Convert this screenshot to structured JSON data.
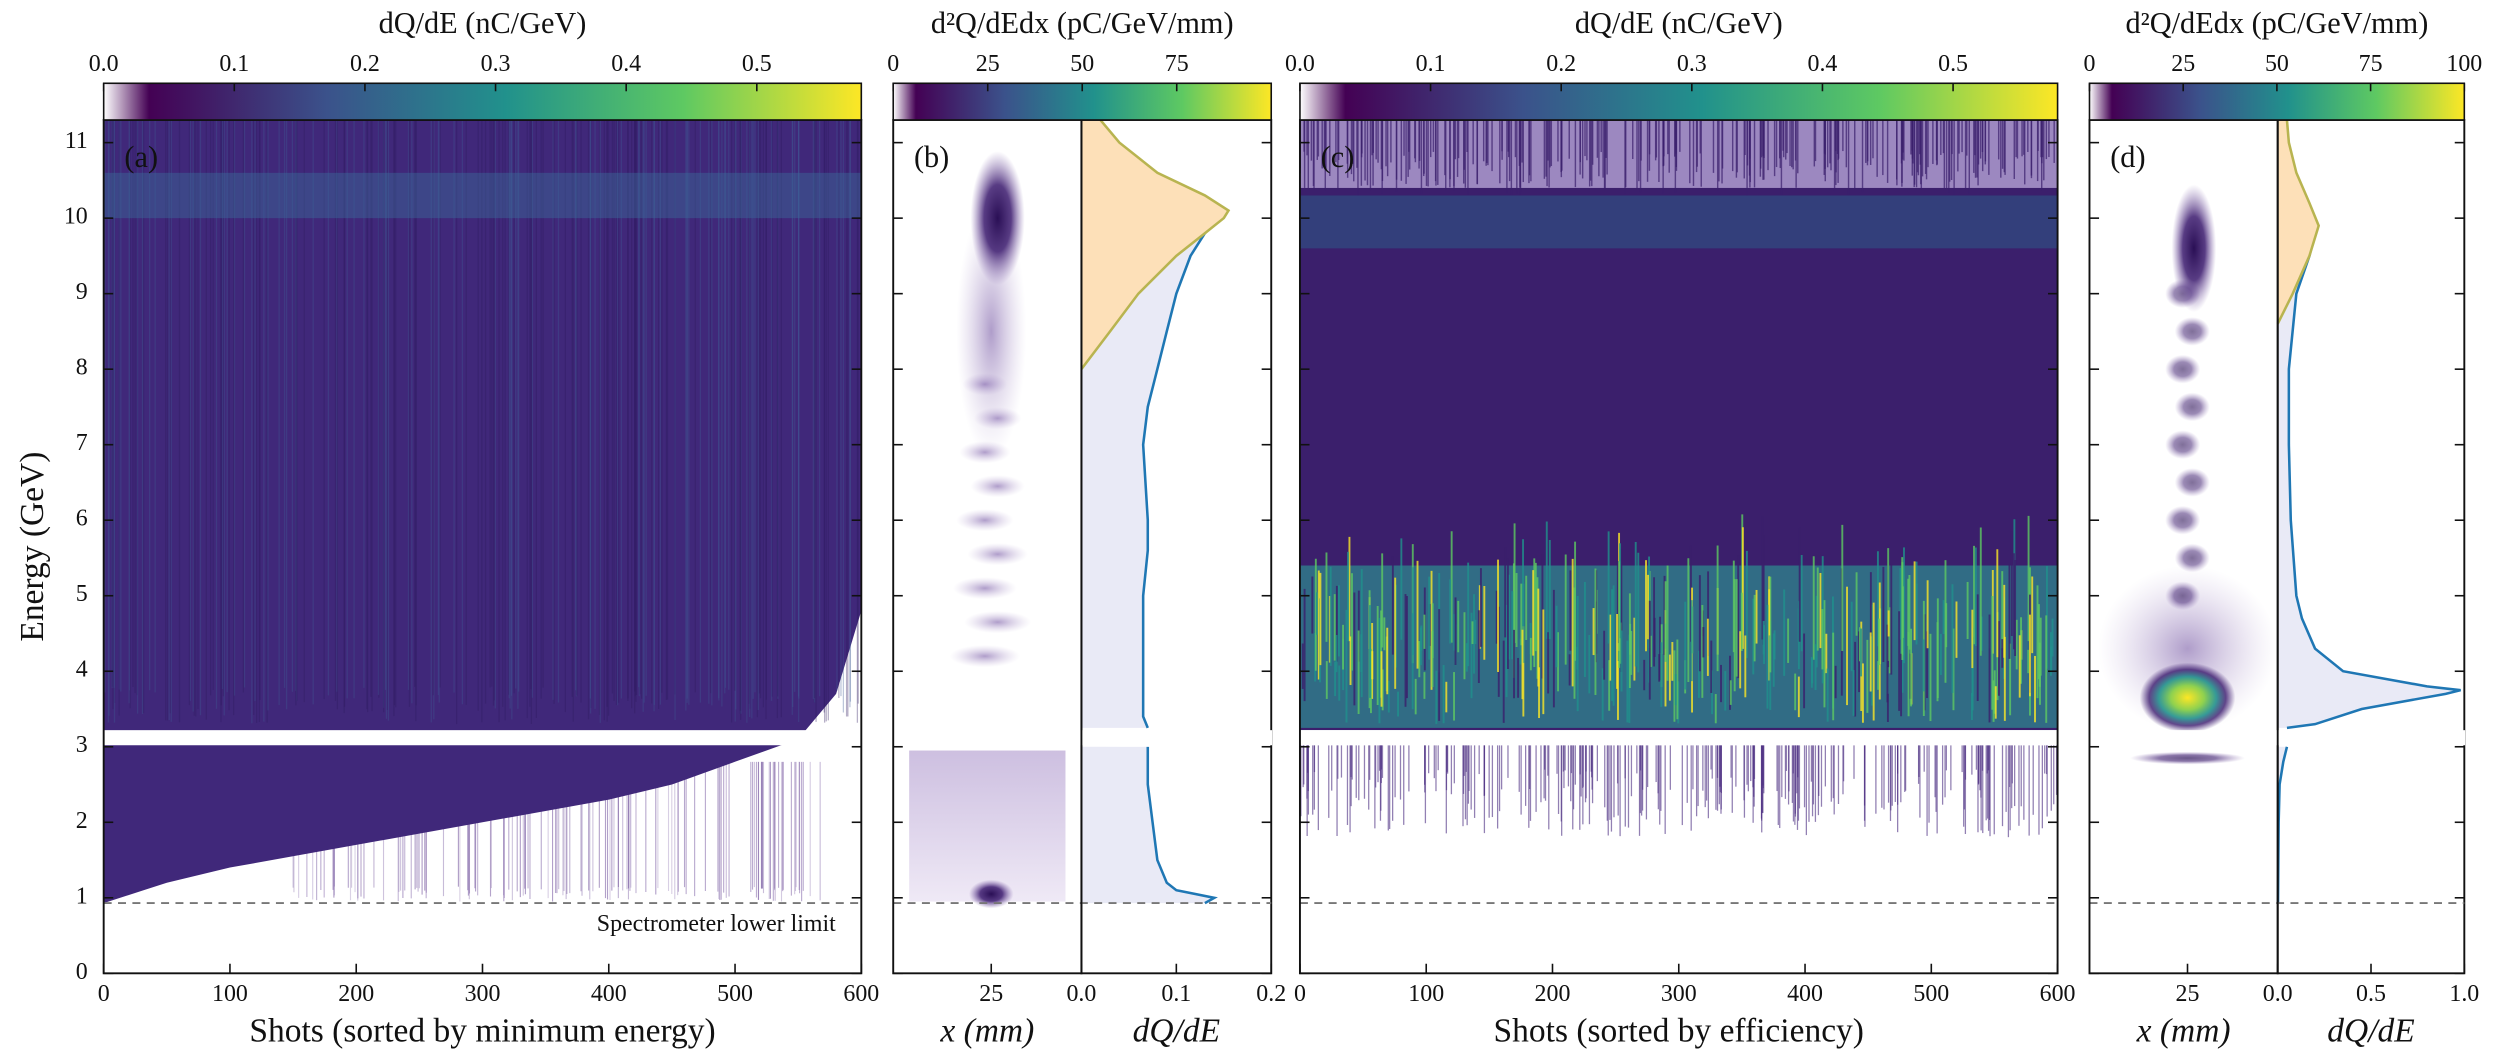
{
  "chart_data": [
    {
      "type": "heatmap",
      "panel_label": "(a)",
      "xlabel": "Shots (sorted by minimum energy)",
      "ylabel": "Energy (GeV)",
      "xlim": [
        0,
        600
      ],
      "xticks": [
        0,
        100,
        200,
        300,
        400,
        500,
        600
      ],
      "ylim": [
        0,
        11.3
      ],
      "yticks": [
        0,
        1,
        2,
        3,
        4,
        5,
        6,
        7,
        8,
        9,
        10,
        11
      ],
      "gap": [
        3.02,
        3.22
      ],
      "lower_limit": 0.93,
      "annotation": "Spectrometer lower limit",
      "min_energy": {
        "x": [
          0,
          50,
          100,
          200,
          300,
          400,
          450,
          500,
          550,
          580,
          600
        ],
        "values": [
          0.93,
          1.2,
          1.4,
          1.7,
          2.0,
          2.3,
          2.5,
          2.8,
          3.1,
          3.7,
          4.8
        ]
      },
      "colormap": [
        "#ffffff",
        "#440154",
        "#3b528b",
        "#21918c",
        "#5ec962",
        "#fde725"
      ],
      "colorbar": {
        "title": "dQ/dE (nC/GeV)",
        "lim": [
          0,
          0.58
        ],
        "ticks": [
          {
            "value": 0,
            "label": "0.0"
          },
          0.1,
          0.2,
          0.3,
          0.4,
          0.5
        ]
      }
    },
    {
      "type": "image-lineout",
      "panel_label": "(b)",
      "xlabel": "x (mm)",
      "xlim": [
        0,
        48
      ],
      "xticks": [
        25
      ],
      "colorbar": {
        "title": "d²Q/dEdx (pC/GeV/mm)",
        "lim": [
          0,
          100
        ],
        "ticks": [
          0,
          25,
          50,
          75
        ]
      },
      "lineout": {
        "xlabel": "dQ/dE",
        "xlim": [
          0,
          0.2
        ],
        "xticks": [
          {
            "value": 0,
            "label": "0.0"
          },
          0.1,
          0.2
        ],
        "color": "#1f77b4",
        "fill": "#e9eaf6",
        "energy": [
          0.93,
          1.0,
          1.05,
          1.1,
          1.2,
          1.5,
          2.0,
          2.5,
          3.0,
          3.1,
          3.25,
          3.4,
          4.0,
          5.0,
          5.6,
          6.0,
          7.0,
          7.5,
          8.0,
          8.5,
          9.0,
          9.5,
          9.8,
          10.0,
          10.1
        ],
        "values": [
          0.13,
          0.14,
          0.12,
          0.1,
          0.09,
          0.08,
          0.075,
          0.07,
          0.07,
          null,
          0.07,
          0.065,
          0.065,
          0.065,
          0.07,
          0.07,
          0.065,
          0.07,
          0.08,
          0.09,
          0.1,
          0.115,
          0.13,
          0.145,
          0.15
        ],
        "fit": {
          "color": "#b8b450",
          "fill": "#fde0b8",
          "energy": [
            8.0,
            8.5,
            9.0,
            9.5,
            9.8,
            10.0,
            10.1,
            10.3,
            10.6,
            11.0,
            11.3
          ],
          "values": [
            0,
            0.03,
            0.06,
            0.1,
            0.13,
            0.15,
            0.155,
            0.13,
            0.08,
            0.04,
            0.02
          ]
        }
      }
    },
    {
      "type": "heatmap",
      "panel_label": "(c)",
      "xlabel": "Shots (sorted by efficiency)",
      "xlim": [
        0,
        600
      ],
      "xticks": [
        0,
        100,
        200,
        300,
        400,
        500,
        600
      ],
      "colorbar": {
        "title": "dQ/dE (nC/GeV)",
        "lim": [
          0,
          0.58
        ],
        "ticks": [
          {
            "value": 0,
            "label": "0.0"
          },
          0.1,
          0.2,
          0.3,
          0.4,
          0.5
        ]
      }
    },
    {
      "type": "image-lineout",
      "panel_label": "(d)",
      "xlabel": "x (mm)",
      "xlim": [
        0,
        48
      ],
      "xticks": [
        25
      ],
      "colorbar": {
        "title": "d²Q/dEdx (pC/GeV/mm)",
        "lim": [
          0,
          100
        ],
        "ticks": [
          0,
          25,
          50,
          75,
          100
        ]
      },
      "lineout": {
        "xlabel": "dQ/dE",
        "xlim": [
          0,
          1.0
        ],
        "xticks": [
          {
            "value": 0,
            "label": "0.0"
          },
          0.5,
          {
            "value": 1,
            "label": "1.0"
          }
        ],
        "color": "#1f77b4",
        "fill": "#e9eaf6",
        "energy": [
          0.93,
          1.5,
          2.0,
          2.5,
          2.8,
          3.0,
          3.1,
          3.25,
          3.3,
          3.5,
          3.7,
          3.75,
          3.8,
          4.0,
          4.3,
          4.7,
          5.0,
          6.0,
          7.0,
          8.0,
          9.0,
          9.5,
          9.8
        ],
        "values": [
          0.002,
          0.003,
          0.005,
          0.01,
          0.03,
          0.05,
          null,
          0.05,
          0.2,
          0.45,
          0.9,
          0.98,
          0.8,
          0.35,
          0.2,
          0.13,
          0.1,
          0.07,
          0.06,
          0.06,
          0.1,
          0.17,
          0.2
        ],
        "fit": {
          "color": "#b8b450",
          "fill": "#fde0b8",
          "energy": [
            8.6,
            9.0,
            9.5,
            9.9,
            10.2,
            10.6,
            11.0,
            11.3
          ],
          "values": [
            0,
            0.08,
            0.17,
            0.22,
            0.17,
            0.1,
            0.06,
            0.05
          ]
        }
      }
    }
  ]
}
